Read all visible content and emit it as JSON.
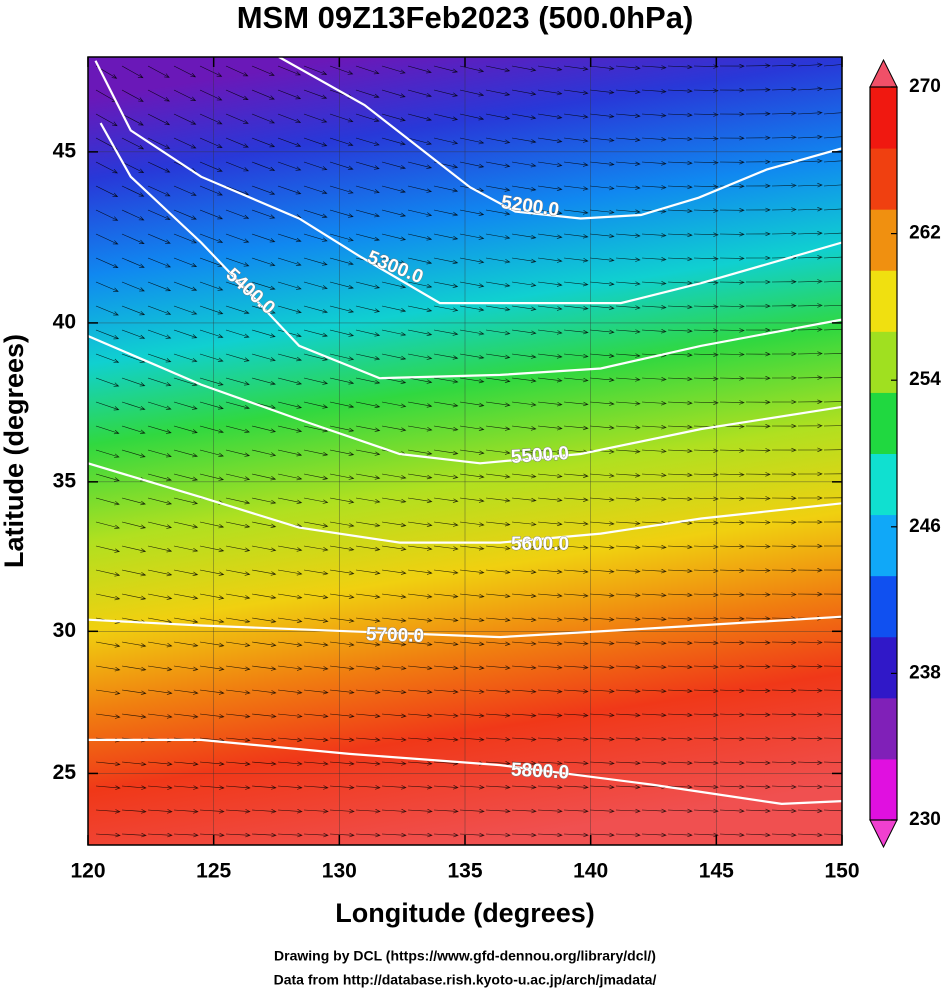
{
  "chart_data": {
    "type": "contour-map",
    "title": "MSM 09Z13Feb2023 (500.0hPa)",
    "x_label": "Longitude (degrees)",
    "y_label": "Latitude  (degrees)",
    "projection": "mercator",
    "xlim": [
      120,
      150
    ],
    "ylim": [
      22.4,
      47.6
    ],
    "xticks": [
      120,
      125,
      130,
      135,
      140,
      145,
      150
    ],
    "yticks": [
      25,
      30,
      35,
      40,
      45
    ],
    "grid": true,
    "contours": [
      {
        "label": "5200.0",
        "lon": [
          127.6,
          131,
          135.2,
          137,
          139.6,
          142,
          144.3,
          147,
          150
        ],
        "lat": [
          47.6,
          46.3,
          44.0,
          43.3,
          43.1,
          43.2,
          43.7,
          44.5,
          45.1
        ]
      },
      {
        "label": "5300.0",
        "lon": [
          120.3,
          121.7,
          124.5,
          128.4,
          130.8,
          134,
          137.2,
          141.2,
          144.4,
          150
        ],
        "lat": [
          47.5,
          45.6,
          44.3,
          43.1,
          42.0,
          40.6,
          40.6,
          40.6,
          41.2,
          42.4
        ]
      },
      {
        "label": "5400.0",
        "lon": [
          120.5,
          121.7,
          124.5,
          126.8,
          128.4,
          131.6,
          136.4,
          140.4,
          144.4,
          150
        ],
        "lat": [
          45.8,
          44.3,
          42.4,
          40.6,
          39.3,
          38.3,
          38.4,
          38.6,
          39.3,
          40.1
        ]
      },
      {
        "label": "5500.0",
        "lon": [
          120,
          124.5,
          128.4,
          132.4,
          135.6,
          139.6,
          144.4,
          150
        ],
        "lat": [
          39.6,
          38.1,
          37.0,
          35.9,
          35.6,
          35.9,
          36.7,
          37.4
        ]
      },
      {
        "label": "5600.0",
        "lon": [
          120,
          124.5,
          128.4,
          132.4,
          136.4,
          140.4,
          144.4,
          150
        ],
        "lat": [
          35.6,
          34.5,
          33.5,
          33.0,
          33.0,
          33.3,
          33.8,
          34.3
        ]
      },
      {
        "label": "5700.0",
        "lon": [
          120,
          124.5,
          130.4,
          136.4,
          142.4,
          150
        ],
        "lat": [
          30.4,
          30.2,
          30.0,
          29.8,
          30.1,
          30.5
        ]
      },
      {
        "label": "5800.0",
        "lon": [
          120,
          124.5,
          130.4,
          136.4,
          142.4,
          147.6,
          150
        ],
        "lat": [
          26.2,
          26.2,
          25.7,
          25.3,
          24.6,
          23.9,
          24.0
        ]
      }
    ],
    "colorbar": {
      "lim": [
        230,
        270
      ],
      "ticks": [
        230,
        238,
        246,
        254,
        262,
        270
      ],
      "colors": [
        "#e010e0",
        "#8020b8",
        "#3018c8",
        "#1050f0",
        "#10a8f8",
        "#10e0d0",
        "#20d840",
        "#a0e020",
        "#f0e010",
        "#f09010",
        "#f04010",
        "#f01810"
      ]
    },
    "footer": [
      "Drawing by DCL (https://www.gfd-dennou.org/library/dcl/)",
      "Data from http://database.rish.kyoto-u.ac.jp/arch/jmadata/"
    ]
  }
}
